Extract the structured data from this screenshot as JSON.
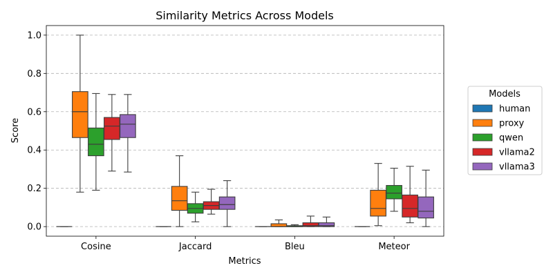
{
  "chart_data": {
    "type": "boxplot",
    "title": "Similarity Metrics Across Models",
    "xlabel": "Metrics",
    "ylabel": "Score",
    "ylim": [
      -0.05,
      1.05
    ],
    "yticks": [
      0.0,
      0.2,
      0.4,
      0.6,
      0.8,
      1.0
    ],
    "ytick_labels": [
      "0.0",
      "0.2",
      "0.4",
      "0.6",
      "0.8",
      "1.0"
    ],
    "grid": "y-dashed",
    "legend_title": "Models",
    "legend_position": "right",
    "categories": [
      "Cosine",
      "Jaccard",
      "Bleu",
      "Meteor"
    ],
    "series": [
      {
        "name": "human",
        "color": "#1f77b4",
        "boxes": [
          {
            "whislo": 0.0,
            "q1": 0.0,
            "med": 0.0,
            "q3": 0.0,
            "whishi": 0.0
          },
          {
            "whislo": 0.0,
            "q1": 0.0,
            "med": 0.0,
            "q3": 0.0,
            "whishi": 0.0
          },
          {
            "whislo": 0.0,
            "q1": 0.0,
            "med": 0.0,
            "q3": 0.0,
            "whishi": 0.0
          },
          {
            "whislo": 0.0,
            "q1": 0.0,
            "med": 0.0,
            "q3": 0.0,
            "whishi": 0.0
          }
        ]
      },
      {
        "name": "proxy",
        "color": "#ff7f0e",
        "boxes": [
          {
            "whislo": 0.18,
            "q1": 0.465,
            "med": 0.6,
            "q3": 0.705,
            "whishi": 1.0
          },
          {
            "whislo": 0.0,
            "q1": 0.085,
            "med": 0.135,
            "q3": 0.21,
            "whishi": 0.37
          },
          {
            "whislo": 0.0,
            "q1": 0.0,
            "med": 0.0,
            "q3": 0.015,
            "whishi": 0.035
          },
          {
            "whislo": 0.005,
            "q1": 0.055,
            "med": 0.095,
            "q3": 0.19,
            "whishi": 0.33
          }
        ]
      },
      {
        "name": "qwen",
        "color": "#2ca02c",
        "boxes": [
          {
            "whislo": 0.19,
            "q1": 0.37,
            "med": 0.43,
            "q3": 0.515,
            "whishi": 0.695
          },
          {
            "whislo": 0.025,
            "q1": 0.07,
            "med": 0.095,
            "q3": 0.12,
            "whishi": 0.18
          },
          {
            "whislo": 0.0,
            "q1": 0.0,
            "med": 0.0,
            "q3": 0.005,
            "whishi": 0.01
          },
          {
            "whislo": 0.08,
            "q1": 0.145,
            "med": 0.175,
            "q3": 0.215,
            "whishi": 0.305
          }
        ]
      },
      {
        "name": "vllama2",
        "color": "#d62728",
        "boxes": [
          {
            "whislo": 0.29,
            "q1": 0.455,
            "med": 0.525,
            "q3": 0.57,
            "whishi": 0.69
          },
          {
            "whislo": 0.065,
            "q1": 0.09,
            "med": 0.11,
            "q3": 0.13,
            "whishi": 0.195
          },
          {
            "whislo": 0.0,
            "q1": 0.0,
            "med": 0.005,
            "q3": 0.02,
            "whishi": 0.055
          },
          {
            "whislo": 0.02,
            "q1": 0.05,
            "med": 0.095,
            "q3": 0.165,
            "whishi": 0.315
          }
        ]
      },
      {
        "name": "vllama3",
        "color": "#9467bd",
        "boxes": [
          {
            "whislo": 0.285,
            "q1": 0.465,
            "med": 0.535,
            "q3": 0.585,
            "whishi": 0.69
          },
          {
            "whislo": 0.0,
            "q1": 0.09,
            "med": 0.115,
            "q3": 0.155,
            "whishi": 0.24
          },
          {
            "whislo": 0.0,
            "q1": 0.0,
            "med": 0.005,
            "q3": 0.02,
            "whishi": 0.05
          },
          {
            "whislo": 0.0,
            "q1": 0.045,
            "med": 0.08,
            "q3": 0.155,
            "whishi": 0.295
          }
        ]
      }
    ]
  }
}
